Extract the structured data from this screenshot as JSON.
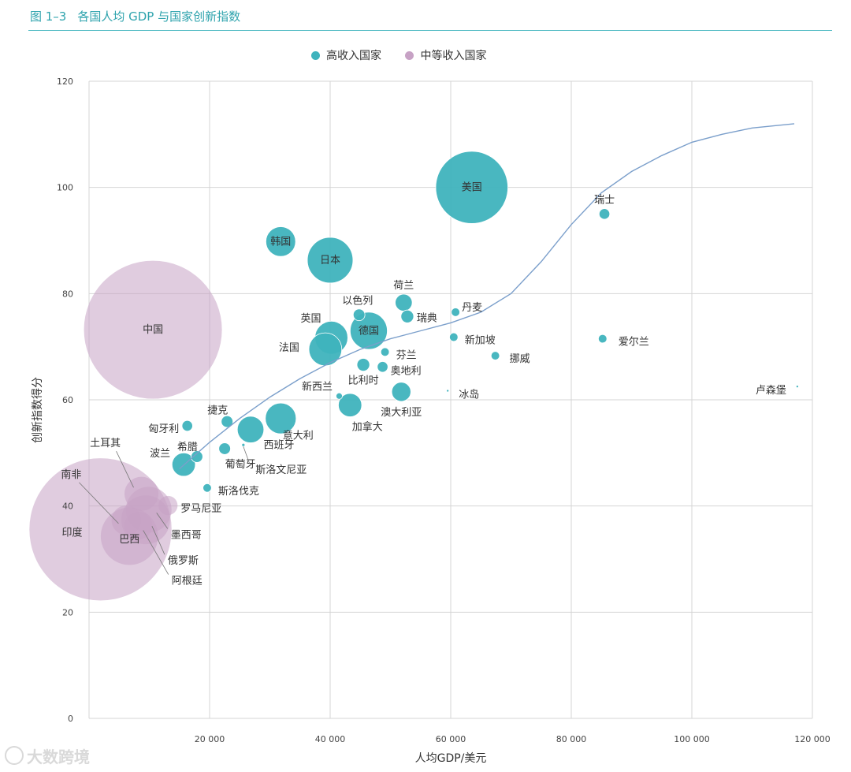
{
  "figure": {
    "number": "图 1–3",
    "title": "各国人均 GDP 与国家创新指数"
  },
  "legend": [
    {
      "name": "高收入国家",
      "color": "#3fb3bd"
    },
    {
      "name": "中等收入国家",
      "color": "#c7a2c5"
    }
  ],
  "watermark": {
    "text": "大数跨境"
  },
  "chart_data": {
    "type": "scatter",
    "xlabel": "人均GDP/美元",
    "ylabel": "创新指数得分",
    "xlim": [
      0,
      120000
    ],
    "ylim": [
      0,
      120
    ],
    "xticks": [
      20000,
      40000,
      60000,
      80000,
      100000,
      120000
    ],
    "xtick_labels": [
      "20 000",
      "40 000",
      "60 000",
      "80 000",
      "100 000",
      "120 000"
    ],
    "yticks": [
      0,
      20,
      40,
      60,
      80,
      100,
      120
    ],
    "ytick_labels": [
      "0",
      "20",
      "40",
      "60",
      "80",
      "100",
      "120"
    ],
    "grid": true,
    "legend_position": "top-center",
    "series": [
      {
        "name": "高收入国家",
        "color": "#3fb3bd",
        "points": [
          {
            "label": "美国",
            "x": 63500,
            "y": 100,
            "r": 6.8
          },
          {
            "label": "瑞士",
            "x": 85500,
            "y": 95,
            "r": 1.0
          },
          {
            "label": "韩国",
            "x": 31800,
            "y": 89.8,
            "r": 2.8
          },
          {
            "label": "日本",
            "x": 40000,
            "y": 86.3,
            "r": 4.3
          },
          {
            "label": "荷兰",
            "x": 52200,
            "y": 78.3,
            "r": 1.6
          },
          {
            "label": "以色列",
            "x": 44800,
            "y": 76,
            "r": 1.1
          },
          {
            "label": "瑞典",
            "x": 52800,
            "y": 75.7,
            "r": 1.2
          },
          {
            "label": "丹麦",
            "x": 60800,
            "y": 76.5,
            "r": 0.8
          },
          {
            "label": "英国",
            "x": 40200,
            "y": 71.7,
            "r": 3.1
          },
          {
            "label": "德国",
            "x": 46400,
            "y": 73,
            "r": 3.5
          },
          {
            "label": "新加坡",
            "x": 60500,
            "y": 71.8,
            "r": 0.8
          },
          {
            "label": "爱尔兰",
            "x": 85200,
            "y": 71.5,
            "r": 0.8
          },
          {
            "label": "法国",
            "x": 39200,
            "y": 69.5,
            "r": 3.1
          },
          {
            "label": "芬兰",
            "x": 49100,
            "y": 69,
            "r": 0.8
          },
          {
            "label": "挪威",
            "x": 67400,
            "y": 68.3,
            "r": 0.8
          },
          {
            "label": "奥地利",
            "x": 48700,
            "y": 66.2,
            "r": 1.0
          },
          {
            "label": "比利时",
            "x": 45500,
            "y": 66.6,
            "r": 1.2
          },
          {
            "label": "新西兰",
            "x": 41500,
            "y": 60.7,
            "r": 0.6
          },
          {
            "label": "冰岛",
            "x": 59500,
            "y": 61.7,
            "r": 0.2
          },
          {
            "label": "卢森堡",
            "x": 117500,
            "y": 62.5,
            "r": 0.2
          },
          {
            "label": "澳大利亚",
            "x": 51800,
            "y": 61.5,
            "r": 1.8
          },
          {
            "label": "加拿大",
            "x": 43300,
            "y": 59,
            "r": 2.2
          },
          {
            "label": "意大利",
            "x": 31800,
            "y": 56.5,
            "r": 2.9
          },
          {
            "label": "捷克",
            "x": 22900,
            "y": 55.9,
            "r": 1.1
          },
          {
            "label": "匈牙利",
            "x": 16300,
            "y": 55.1,
            "r": 1.0
          },
          {
            "label": "西班牙",
            "x": 26800,
            "y": 54.4,
            "r": 2.5
          },
          {
            "label": "斯洛文尼亚",
            "x": 25600,
            "y": 51.5,
            "r": 0.3
          },
          {
            "label": "葡萄牙",
            "x": 22500,
            "y": 50.8,
            "r": 1.1
          },
          {
            "label": "希腊",
            "x": 17900,
            "y": 49.3,
            "r": 1.1
          },
          {
            "label": "波兰",
            "x": 15700,
            "y": 47.8,
            "r": 2.2
          },
          {
            "label": "斯洛伐克",
            "x": 19600,
            "y": 43.4,
            "r": 0.8
          }
        ]
      },
      {
        "name": "中等收入国家",
        "color": "#c7a2c5",
        "points": [
          {
            "label": "中国",
            "x": 10600,
            "y": 73.2,
            "r": 13.0
          },
          {
            "label": "印度",
            "x": 1900,
            "y": 35.6,
            "r": 13.4
          },
          {
            "label": "土耳其",
            "x": 8700,
            "y": 42.3,
            "r": 3.2
          },
          {
            "label": "南非",
            "x": 6200,
            "y": 37.3,
            "r": 2.8
          },
          {
            "label": "罗马尼亚",
            "x": 13100,
            "y": 40.1,
            "r": 1.8
          },
          {
            "label": "墨西哥",
            "x": 9900,
            "y": 39.3,
            "r": 4.3
          },
          {
            "label": "俄罗斯",
            "x": 9400,
            "y": 37.4,
            "r": 4.6
          },
          {
            "label": "巴西",
            "x": 6700,
            "y": 34.3,
            "r": 5.4
          },
          {
            "label": "阿根廷",
            "x": 8200,
            "y": 36.3,
            "r": 2.6
          }
        ]
      }
    ],
    "trend_curve": {
      "color": "#7b9fcb",
      "points": [
        [
          15000,
          47
        ],
        [
          20000,
          52
        ],
        [
          25000,
          56.5
        ],
        [
          30000,
          60.5
        ],
        [
          35000,
          64
        ],
        [
          40000,
          67
        ],
        [
          45000,
          69.5
        ],
        [
          50000,
          71.5
        ],
        [
          55000,
          73
        ],
        [
          60000,
          74.5
        ],
        [
          65000,
          76.5
        ],
        [
          70000,
          80
        ],
        [
          75000,
          86
        ],
        [
          80000,
          93
        ],
        [
          85000,
          99
        ],
        [
          90000,
          103
        ],
        [
          95000,
          106
        ],
        [
          100000,
          108.5
        ],
        [
          105000,
          110
        ],
        [
          110000,
          111.2
        ],
        [
          117000,
          112
        ]
      ]
    }
  }
}
